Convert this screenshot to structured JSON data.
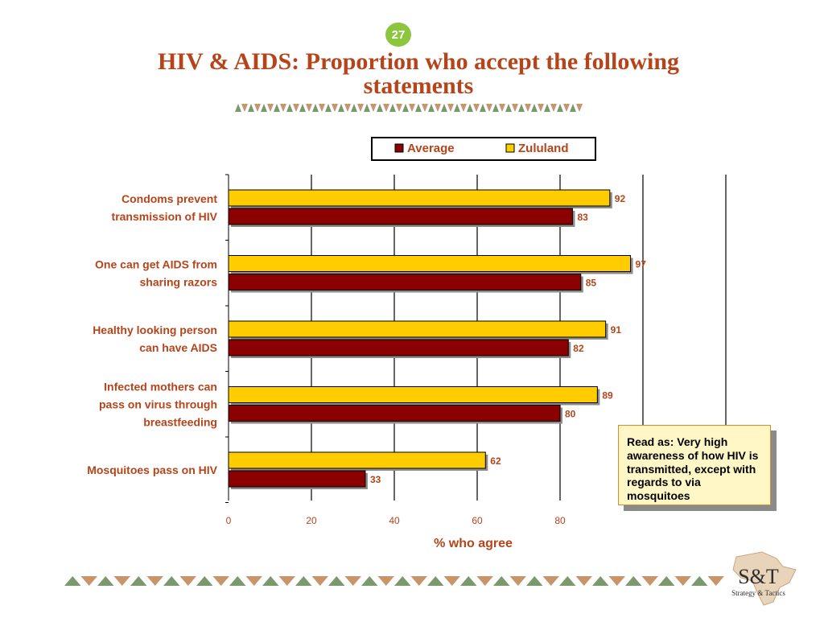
{
  "slide": {
    "page_number": "27",
    "title_line1": "HIV & AIDS: Proportion who accept the following",
    "title_line2": "statements",
    "callout": "Read as: Very high awareness of how HIV is transmitted, except with regards to via mosquitoes",
    "logo_text": "S&T",
    "logo_subtext": "Strategy & Tactics"
  },
  "colors": {
    "title": "#b5441a",
    "label": "#b5441a",
    "average": "#8b0000",
    "zululand": "#ffcc00",
    "badge": "#8cc63f",
    "ornament_a": "#7a9a6e",
    "ornament_b": "#c8956a"
  },
  "chart_data": {
    "type": "bar",
    "orientation": "horizontal",
    "categories": [
      "Condoms prevent transmission of HIV",
      "One can get AIDS from sharing razors",
      "Healthy looking person can have AIDS",
      "Infected mothers can pass on virus through breastfeeding",
      "Mosquitoes pass on HIV"
    ],
    "series": [
      {
        "name": "Zululand",
        "values": [
          92,
          97,
          91,
          89,
          62
        ]
      },
      {
        "name": "Average",
        "values": [
          83,
          85,
          82,
          80,
          33
        ]
      }
    ],
    "legend": [
      "Average",
      "Zululand"
    ],
    "legend_position": "top",
    "xlabel": "% who agree",
    "xticks": [
      "0",
      "20",
      "40",
      "60",
      "80"
    ],
    "xlim": [
      0,
      120
    ],
    "grid": true
  }
}
